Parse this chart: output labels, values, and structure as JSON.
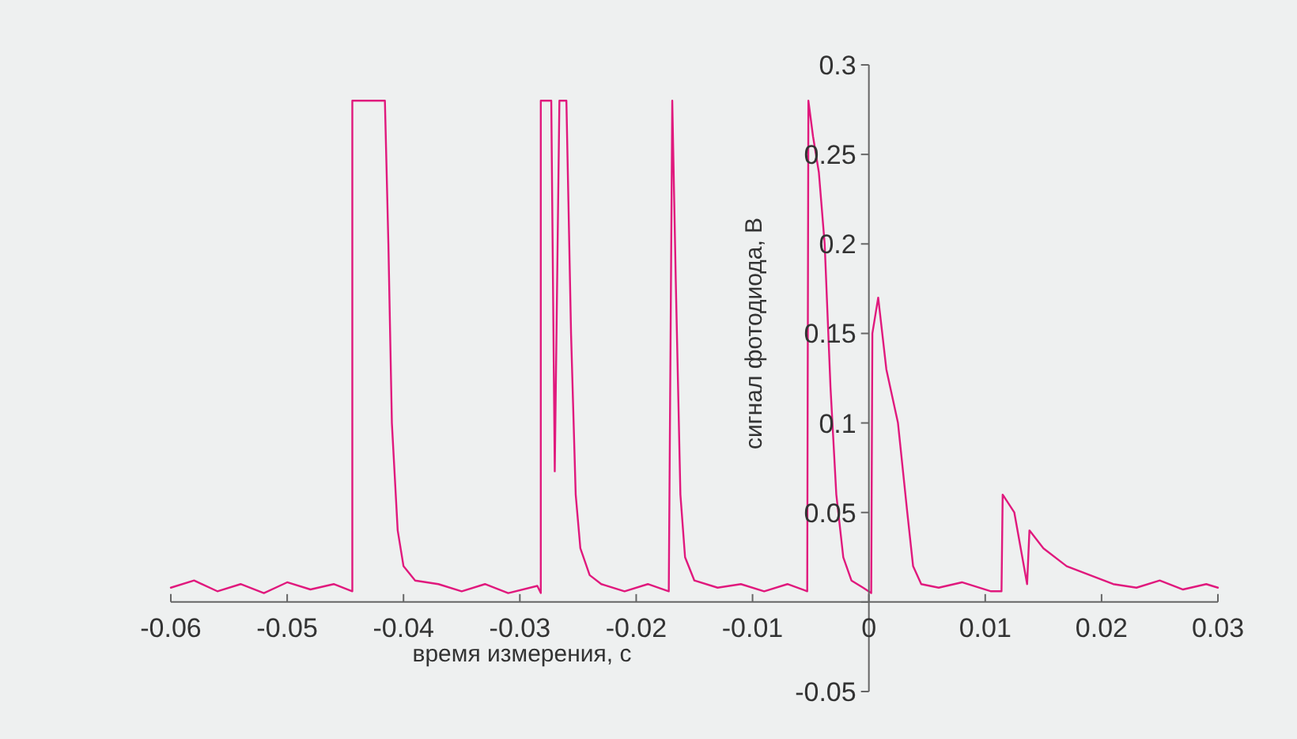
{
  "chart_data": {
    "type": "line",
    "xlabel": "время измерения, с",
    "ylabel": "сигнал фотодиода, В",
    "xlim": [
      -0.06,
      0.03
    ],
    "ylim": [
      -0.05,
      0.3
    ],
    "xticks": [
      -0.06,
      -0.05,
      -0.04,
      -0.03,
      -0.02,
      -0.01,
      0,
      0.01,
      0.02,
      0.03
    ],
    "yticks": [
      -0.05,
      {
        "value": 0,
        "label": null
      },
      0.05,
      0.1,
      0.15,
      0.2,
      0.25,
      0.3
    ],
    "grid": false,
    "marker": "none",
    "line_style": "solid",
    "series": [
      {
        "color": "#e0197d",
        "x": [
          -0.06,
          -0.058,
          -0.056,
          -0.054,
          -0.052,
          -0.05,
          -0.048,
          -0.046,
          -0.0444,
          -0.0444,
          -0.0416,
          -0.0413,
          -0.041,
          -0.0405,
          -0.04,
          -0.039,
          -0.037,
          -0.035,
          -0.033,
          -0.031,
          -0.0285,
          -0.0282,
          -0.0282,
          -0.0273,
          -0.027,
          -0.0266,
          -0.026,
          -0.0256,
          -0.0252,
          -0.0248,
          -0.024,
          -0.023,
          -0.021,
          -0.019,
          -0.0172,
          -0.0169,
          -0.0166,
          -0.0162,
          -0.0158,
          -0.015,
          -0.013,
          -0.011,
          -0.009,
          -0.007,
          -0.0053,
          -0.0052,
          -0.0048,
          -0.0043,
          -0.0038,
          -0.0033,
          -0.0028,
          -0.0022,
          -0.0015,
          -0.0005,
          0.0002,
          0.0003,
          0.0008,
          0.0015,
          0.0025,
          0.0033,
          0.0038,
          0.0045,
          0.006,
          0.008,
          0.0105,
          0.0114,
          0.0115,
          0.0125,
          0.0136,
          0.0138,
          0.015,
          0.017,
          0.019,
          0.021,
          0.023,
          0.025,
          0.027,
          0.029,
          0.03
        ],
        "values": [
          0.008,
          0.012,
          0.006,
          0.01,
          0.005,
          0.011,
          0.007,
          0.01,
          0.006,
          0.28,
          0.28,
          0.2,
          0.1,
          0.04,
          0.02,
          0.012,
          0.01,
          0.006,
          0.01,
          0.005,
          0.009,
          0.005,
          0.28,
          0.28,
          0.073,
          0.28,
          0.28,
          0.15,
          0.06,
          0.03,
          0.015,
          0.01,
          0.006,
          0.01,
          0.006,
          0.28,
          0.18,
          0.06,
          0.025,
          0.012,
          0.008,
          0.01,
          0.006,
          0.01,
          0.006,
          0.28,
          0.26,
          0.24,
          0.2,
          0.12,
          0.06,
          0.025,
          0.012,
          0.008,
          0.005,
          0.15,
          0.17,
          0.13,
          0.1,
          0.05,
          0.02,
          0.01,
          0.008,
          0.011,
          0.006,
          0.006,
          0.06,
          0.05,
          0.01,
          0.04,
          0.03,
          0.02,
          0.015,
          0.01,
          0.008,
          0.012,
          0.007,
          0.01,
          0.008
        ]
      }
    ]
  }
}
